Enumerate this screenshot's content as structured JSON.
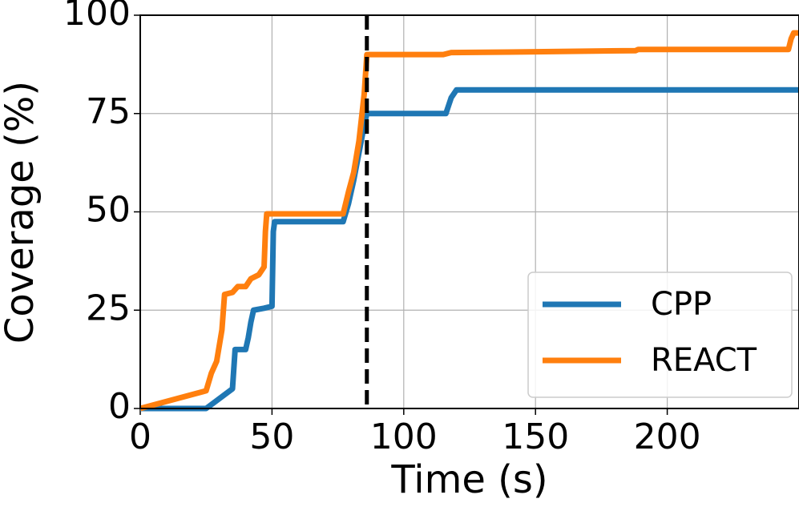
{
  "chart_data": {
    "type": "line",
    "xlabel": "Time (s)",
    "ylabel": "Coverage (%)",
    "xlim": [
      0,
      250
    ],
    "ylim": [
      0,
      100
    ],
    "xticks": [
      0,
      50,
      100,
      150,
      200
    ],
    "yticks": [
      0,
      25,
      50,
      75,
      100
    ],
    "grid": true,
    "legend": "lower right",
    "vline": 86,
    "series": [
      {
        "name": "CPP",
        "color": "#1f77b4",
        "x": [
          0,
          25,
          35,
          35.5,
          36,
          40,
          41,
          42,
          43,
          47,
          50,
          50.5,
          51,
          77,
          79,
          81,
          83,
          85,
          86,
          116,
          117,
          118,
          120,
          250
        ],
        "values": [
          0,
          0,
          5,
          10,
          15,
          15,
          18,
          22,
          25,
          25.5,
          26,
          45,
          47.5,
          47.5,
          52,
          58,
          65,
          72,
          75,
          75,
          77,
          79,
          81,
          81
        ]
      },
      {
        "name": "REACT",
        "color": "#ff7f0e",
        "x": [
          0,
          25,
          27,
          29,
          31,
          32,
          35,
          37,
          40,
          42,
          45,
          47,
          47.5,
          48,
          77,
          79,
          81,
          83,
          85,
          86,
          115,
          118,
          150,
          188,
          189,
          246,
          247,
          248,
          250
        ],
        "values": [
          0,
          4.5,
          9,
          12,
          20,
          29,
          29.5,
          31,
          31,
          33,
          34,
          36,
          45,
          49.5,
          49.5,
          55,
          60,
          68,
          80,
          90,
          90,
          90.5,
          90.7,
          91,
          91.3,
          91.3,
          94,
          95.5,
          95.5
        ]
      }
    ]
  }
}
